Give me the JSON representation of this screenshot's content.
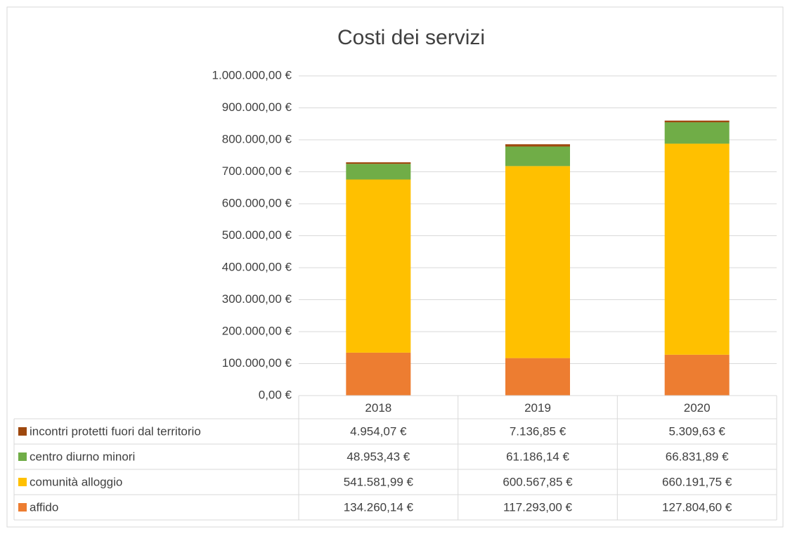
{
  "chart_data": {
    "type": "bar",
    "stacked": true,
    "title": "Costi dei servizi",
    "categories": [
      "2018",
      "2019",
      "2020"
    ],
    "series": [
      {
        "name": "affido",
        "color": "#ed7d31",
        "values": [
          134260.14,
          117293.0,
          127804.6
        ],
        "value_labels": [
          "134.260,14 €",
          "117.293,00 €",
          "127.804,60 €"
        ]
      },
      {
        "name": "comunità alloggio",
        "color": "#ffc000",
        "values": [
          541581.99,
          600567.85,
          660191.75
        ],
        "value_labels": [
          "541.581,99 €",
          "600.567,85 €",
          "660.191,75 €"
        ]
      },
      {
        "name": "centro diurno minori",
        "color": "#70ad47",
        "values": [
          48953.43,
          61186.14,
          66831.89
        ],
        "value_labels": [
          "48.953,43 €",
          "61.186,14 €",
          "66.831,89 €"
        ]
      },
      {
        "name": "incontri protetti fuori dal territorio",
        "color": "#9e480e",
        "values": [
          4954.07,
          7136.85,
          5309.63
        ],
        "value_labels": [
          "4.954,07 €",
          "7.136,85 €",
          "5.309,63 €"
        ]
      }
    ],
    "ylim": [
      0,
      1000000
    ],
    "yticks": [
      {
        "value": 0,
        "label": "0,00 €"
      },
      {
        "value": 100000,
        "label": "100.000,00 €"
      },
      {
        "value": 200000,
        "label": "200.000,00 €"
      },
      {
        "value": 300000,
        "label": "300.000,00 €"
      },
      {
        "value": 400000,
        "label": "400.000,00 €"
      },
      {
        "value": 500000,
        "label": "500.000,00 €"
      },
      {
        "value": 600000,
        "label": "600.000,00 €"
      },
      {
        "value": 700000,
        "label": "700.000,00 €"
      },
      {
        "value": 800000,
        "label": "800.000,00 €"
      },
      {
        "value": 900000,
        "label": "900.000,00 €"
      },
      {
        "value": 1000000,
        "label": "1.000.000,00 €"
      }
    ],
    "grid": true,
    "data_table": true
  }
}
